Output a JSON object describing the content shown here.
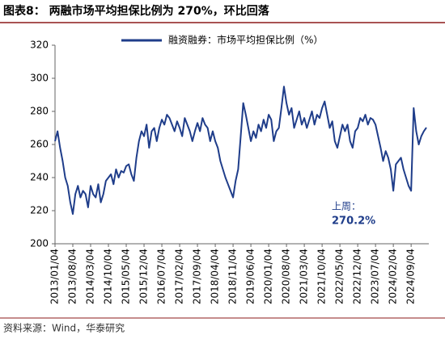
{
  "chart_data": {
    "type": "line",
    "title": "图表8：  两融市场平均担保比例为 270%，环比回落",
    "source": "资料来源：Wind，华泰研究",
    "annotations": [
      "上周：",
      "270.2%"
    ],
    "categories": [
      "2013/01/04",
      null,
      null,
      null,
      null,
      null,
      null,
      "2013/08/04",
      null,
      null,
      null,
      null,
      null,
      null,
      "2014/03/04",
      null,
      null,
      null,
      null,
      null,
      null,
      "2014/10/04",
      null,
      null,
      null,
      null,
      null,
      null,
      "2015/05/04",
      null,
      null,
      null,
      null,
      null,
      null,
      "2015/12/04",
      null,
      null,
      null,
      null,
      null,
      null,
      "2016/07/04",
      null,
      null,
      null,
      null,
      null,
      null,
      "2017/02/04",
      null,
      null,
      null,
      null,
      null,
      null,
      "2017/09/04",
      null,
      null,
      null,
      null,
      null,
      null,
      "2018/04/04",
      null,
      null,
      null,
      null,
      null,
      null,
      "2018/11/04",
      null,
      null,
      null,
      null,
      null,
      null,
      "2019/06/04",
      null,
      null,
      null,
      null,
      null,
      null,
      "2020/01/04",
      null,
      null,
      null,
      null,
      null,
      null,
      "2020/08/04",
      null,
      null,
      null,
      null,
      null,
      null,
      "2021/03/04",
      null,
      null,
      null,
      null,
      null,
      null,
      "2021/10/04",
      null,
      null,
      null,
      null,
      null,
      null,
      "2022/05/04",
      null,
      null,
      null,
      null,
      null,
      null,
      "2022/12/04",
      null,
      null,
      null,
      null,
      null,
      null,
      "2023/07/04",
      null,
      null,
      null,
      null,
      null,
      null,
      "2024/02/04",
      null,
      null,
      null,
      null,
      null,
      null,
      "2024/09/04",
      null,
      null,
      null,
      null,
      null,
      null
    ],
    "series": [
      {
        "name": "融资融券：市场平均担保比例（%）",
        "color": "#1f3d8a",
        "values": [
          262,
          268,
          258,
          250,
          240,
          235,
          225,
          218,
          230,
          235,
          228,
          232,
          230,
          222,
          235,
          230,
          228,
          236,
          225,
          230,
          238,
          240,
          242,
          236,
          245,
          240,
          244,
          243,
          247,
          248,
          242,
          238,
          252,
          262,
          268,
          265,
          272,
          258,
          268,
          270,
          262,
          270,
          275,
          272,
          278,
          276,
          272,
          268,
          274,
          270,
          265,
          276,
          272,
          268,
          262,
          268,
          273,
          268,
          276,
          272,
          270,
          262,
          268,
          262,
          258,
          250,
          245,
          240,
          236,
          232,
          228,
          238,
          245,
          265,
          285,
          278,
          270,
          262,
          268,
          264,
          272,
          268,
          275,
          270,
          278,
          275,
          262,
          268,
          270,
          282,
          295,
          285,
          278,
          282,
          270,
          275,
          280,
          272,
          276,
          270,
          275,
          280,
          272,
          278,
          276,
          282,
          286,
          278,
          270,
          274,
          262,
          258,
          265,
          272,
          268,
          272,
          262,
          258,
          268,
          270,
          276,
          274,
          278,
          272,
          276,
          275,
          272,
          265,
          258,
          250,
          256,
          252,
          245,
          232,
          248,
          250,
          252,
          245,
          240,
          235,
          232,
          282,
          268,
          260,
          265,
          268,
          270.2
        ]
      }
    ],
    "ylim": [
      200,
      320
    ],
    "yticks": [
      200,
      220,
      240,
      260,
      280,
      300,
      320
    ]
  }
}
